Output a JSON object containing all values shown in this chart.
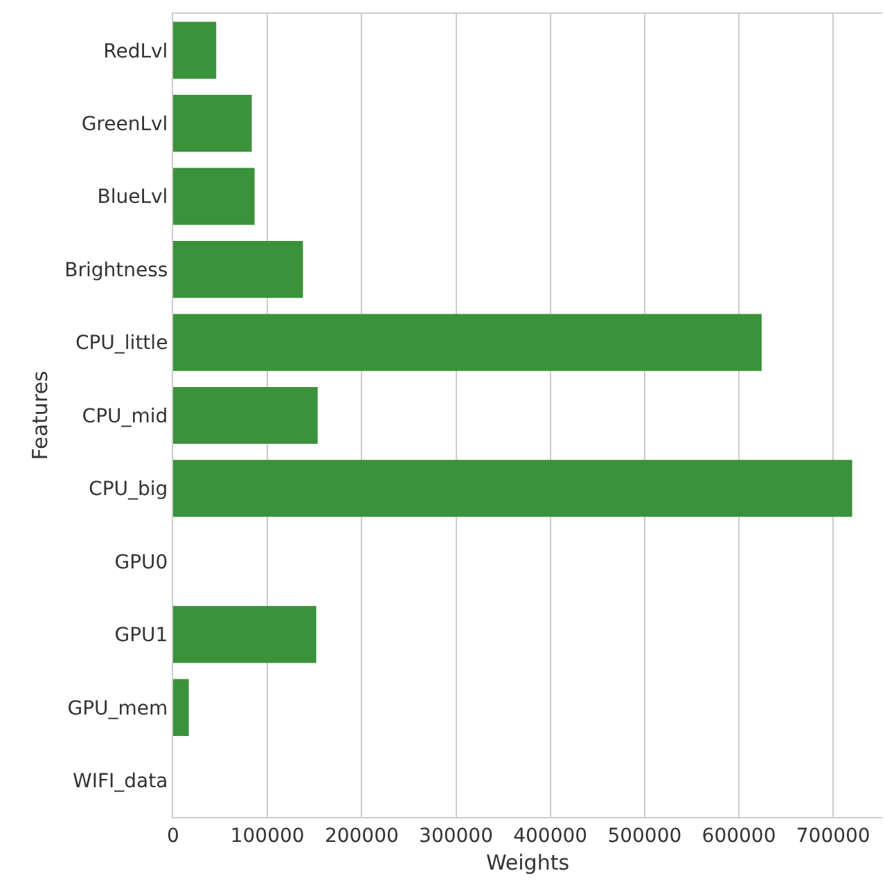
{
  "chart_data": {
    "type": "bar",
    "orientation": "horizontal",
    "xlabel": "Weights",
    "ylabel": "Features",
    "categories": [
      "RedLvl",
      "GreenLvl",
      "BlueLvl",
      "Brightness",
      "CPU_little",
      "CPU_mid",
      "CPU_big",
      "GPU0",
      "GPU1",
      "GPU_mem",
      "WIFI_data"
    ],
    "values": [
      45700,
      83400,
      86400,
      137700,
      624100,
      153300,
      720100,
      0,
      151800,
      16600,
      0
    ],
    "color": "#3a923a",
    "xlim": [
      0,
      752000
    ],
    "xticks": [
      0,
      100000,
      200000,
      300000,
      400000,
      500000,
      600000,
      700000
    ],
    "grid": "x",
    "legend": false
  }
}
